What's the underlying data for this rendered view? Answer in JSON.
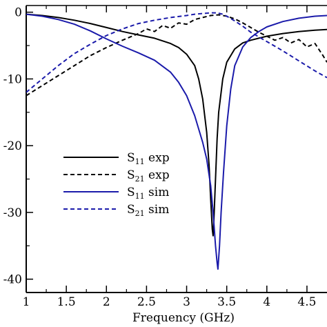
{
  "chart_data": {
    "type": "line",
    "xlabel": "Frequency (GHz)",
    "ylabel": "",
    "xlim": [
      1,
      4.75
    ],
    "ylim": [
      -42,
      1
    ],
    "x_ticks": [
      1,
      1.5,
      2,
      2.5,
      3,
      3.5,
      4,
      4.5
    ],
    "x_tick_labels": [
      "1",
      "1.5",
      "2",
      "2.5",
      "3",
      "3.5",
      "4",
      "4.5"
    ],
    "y_ticks": [
      0,
      -10,
      -20,
      -30,
      -40
    ],
    "y_tick_labels": [
      "0",
      "-10",
      "-20",
      "-30",
      "-40"
    ],
    "grid": false,
    "legend_position": "left-bottom",
    "series": [
      {
        "name": "S11 exp",
        "legend_main": "S",
        "legend_sub": "11",
        "legend_tail": " exp",
        "color": "#000000",
        "dash": "solid",
        "x": [
          1.0,
          1.2,
          1.4,
          1.6,
          1.8,
          2.0,
          2.2,
          2.4,
          2.6,
          2.8,
          2.9,
          3.0,
          3.1,
          3.15,
          3.2,
          3.25,
          3.28,
          3.3,
          3.32,
          3.33,
          3.34,
          3.36,
          3.38,
          3.4,
          3.45,
          3.5,
          3.6,
          3.7,
          3.8,
          3.9,
          4.0,
          4.2,
          4.4,
          4.6,
          4.75
        ],
        "y": [
          -0.3,
          -0.5,
          -0.8,
          -1.2,
          -1.7,
          -2.3,
          -2.9,
          -3.4,
          -3.9,
          -4.7,
          -5.3,
          -6.3,
          -8.0,
          -10.0,
          -13.0,
          -18.0,
          -23.0,
          -28.0,
          -32.5,
          -33.5,
          -31.0,
          -25.0,
          -19.0,
          -15.0,
          -10.0,
          -7.5,
          -5.5,
          -4.6,
          -4.2,
          -3.9,
          -3.6,
          -3.2,
          -2.9,
          -2.7,
          -2.6
        ]
      },
      {
        "name": "S21 exp",
        "legend_main": "S",
        "legend_sub": "21",
        "legend_tail": " exp",
        "color": "#000000",
        "dash": "dashed",
        "x": [
          1.0,
          1.2,
          1.4,
          1.6,
          1.8,
          2.0,
          2.2,
          2.4,
          2.5,
          2.6,
          2.7,
          2.8,
          2.9,
          3.0,
          3.1,
          3.2,
          3.3,
          3.4,
          3.5,
          3.6,
          3.7,
          3.8,
          3.9,
          4.0,
          4.1,
          4.2,
          4.3,
          4.4,
          4.5,
          4.6,
          4.7,
          4.75
        ],
        "y": [
          -12.5,
          -11.0,
          -9.5,
          -8.0,
          -6.5,
          -5.3,
          -4.2,
          -3.2,
          -2.5,
          -2.9,
          -2.0,
          -2.4,
          -1.6,
          -1.8,
          -1.1,
          -0.8,
          -0.5,
          -0.4,
          -0.6,
          -1.0,
          -1.6,
          -2.3,
          -3.0,
          -3.6,
          -4.2,
          -3.8,
          -4.6,
          -4.1,
          -5.2,
          -4.7,
          -6.5,
          -7.5
        ]
      },
      {
        "name": "S11 sim",
        "legend_main": "S",
        "legend_sub": "11",
        "legend_tail": " sim",
        "color": "#1a1aaa",
        "dash": "solid",
        "x": [
          1.0,
          1.2,
          1.4,
          1.6,
          1.8,
          2.0,
          2.2,
          2.4,
          2.6,
          2.8,
          2.9,
          3.0,
          3.1,
          3.15,
          3.2,
          3.25,
          3.3,
          3.33,
          3.36,
          3.38,
          3.39,
          3.41,
          3.43,
          3.46,
          3.5,
          3.55,
          3.6,
          3.7,
          3.8,
          3.9,
          4.0,
          4.2,
          4.4,
          4.6,
          4.75
        ],
        "y": [
          -0.3,
          -0.6,
          -1.1,
          -1.8,
          -2.8,
          -4.0,
          -5.1,
          -6.1,
          -7.2,
          -9.0,
          -10.5,
          -12.5,
          -15.5,
          -17.5,
          -19.5,
          -22.0,
          -26.0,
          -30.0,
          -35.0,
          -37.5,
          -38.5,
          -35.0,
          -30.0,
          -24.0,
          -17.0,
          -11.5,
          -8.0,
          -5.2,
          -3.8,
          -2.9,
          -2.2,
          -1.4,
          -0.9,
          -0.6,
          -0.5
        ]
      },
      {
        "name": "S21 sim",
        "legend_main": "S",
        "legend_sub": "21",
        "legend_tail": " sim",
        "color": "#1a1aaa",
        "dash": "dashed",
        "x": [
          1.0,
          1.2,
          1.4,
          1.6,
          1.8,
          2.0,
          2.2,
          2.4,
          2.6,
          2.8,
          3.0,
          3.1,
          3.2,
          3.3,
          3.38,
          3.45,
          3.5,
          3.6,
          3.7,
          3.8,
          3.9,
          4.0,
          4.2,
          4.4,
          4.6,
          4.75
        ],
        "y": [
          -12.0,
          -10.0,
          -8.0,
          -6.2,
          -4.8,
          -3.5,
          -2.5,
          -1.7,
          -1.2,
          -0.8,
          -0.5,
          -0.3,
          -0.2,
          -0.1,
          -0.1,
          -0.3,
          -0.6,
          -1.3,
          -2.1,
          -3.0,
          -3.7,
          -4.4,
          -5.8,
          -7.3,
          -8.8,
          -9.8
        ]
      }
    ]
  }
}
